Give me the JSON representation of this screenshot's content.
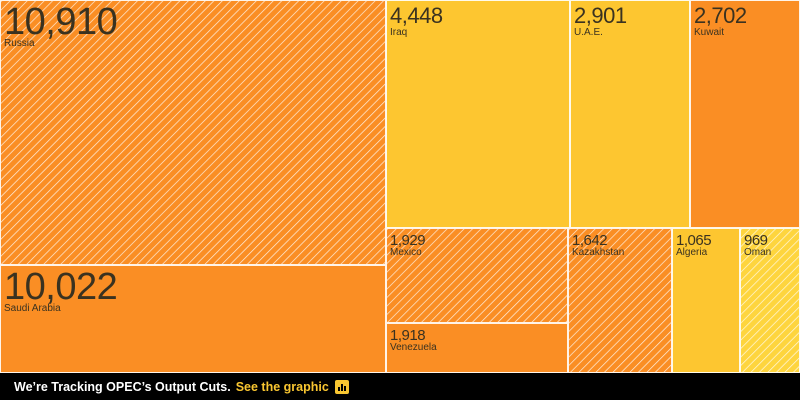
{
  "chart_data": {
    "type": "treemap",
    "colors": {
      "orange": "#fa8e24",
      "yellow": "#fdc630",
      "yellow_light": "#fed53e",
      "hatch_line": "#ffffff"
    },
    "items": [
      {
        "name": "Russia",
        "value": 10910,
        "label": "10,910",
        "color": "orange",
        "hatched": true
      },
      {
        "name": "Saudi Arabia",
        "value": 10022,
        "label": "10,022",
        "color": "orange",
        "hatched": false
      },
      {
        "name": "Iraq",
        "value": 4448,
        "label": "4,448",
        "color": "yellow",
        "hatched": false
      },
      {
        "name": "U.A.E.",
        "value": 2901,
        "label": "2,901",
        "color": "yellow",
        "hatched": false
      },
      {
        "name": "Kuwait",
        "value": 2702,
        "label": "2,702",
        "color": "orange",
        "hatched": false
      },
      {
        "name": "Mexico",
        "value": 1929,
        "label": "1,929",
        "color": "orange",
        "hatched": true
      },
      {
        "name": "Venezuela",
        "value": 1918,
        "label": "1,918",
        "color": "orange",
        "hatched": false
      },
      {
        "name": "Kazakhstan",
        "value": 1642,
        "label": "1,642",
        "color": "orange",
        "hatched": true
      },
      {
        "name": "Algeria",
        "value": 1065,
        "label": "1,065",
        "color": "yellow",
        "hatched": false
      },
      {
        "name": "Oman",
        "value": 969,
        "label": "969",
        "color": "yellow_light",
        "hatched": true
      }
    ]
  },
  "footer": {
    "text": "We’re Tracking OPEC’s Output Cuts.",
    "link": "See the graphic",
    "icon": "bar-chart-icon"
  }
}
